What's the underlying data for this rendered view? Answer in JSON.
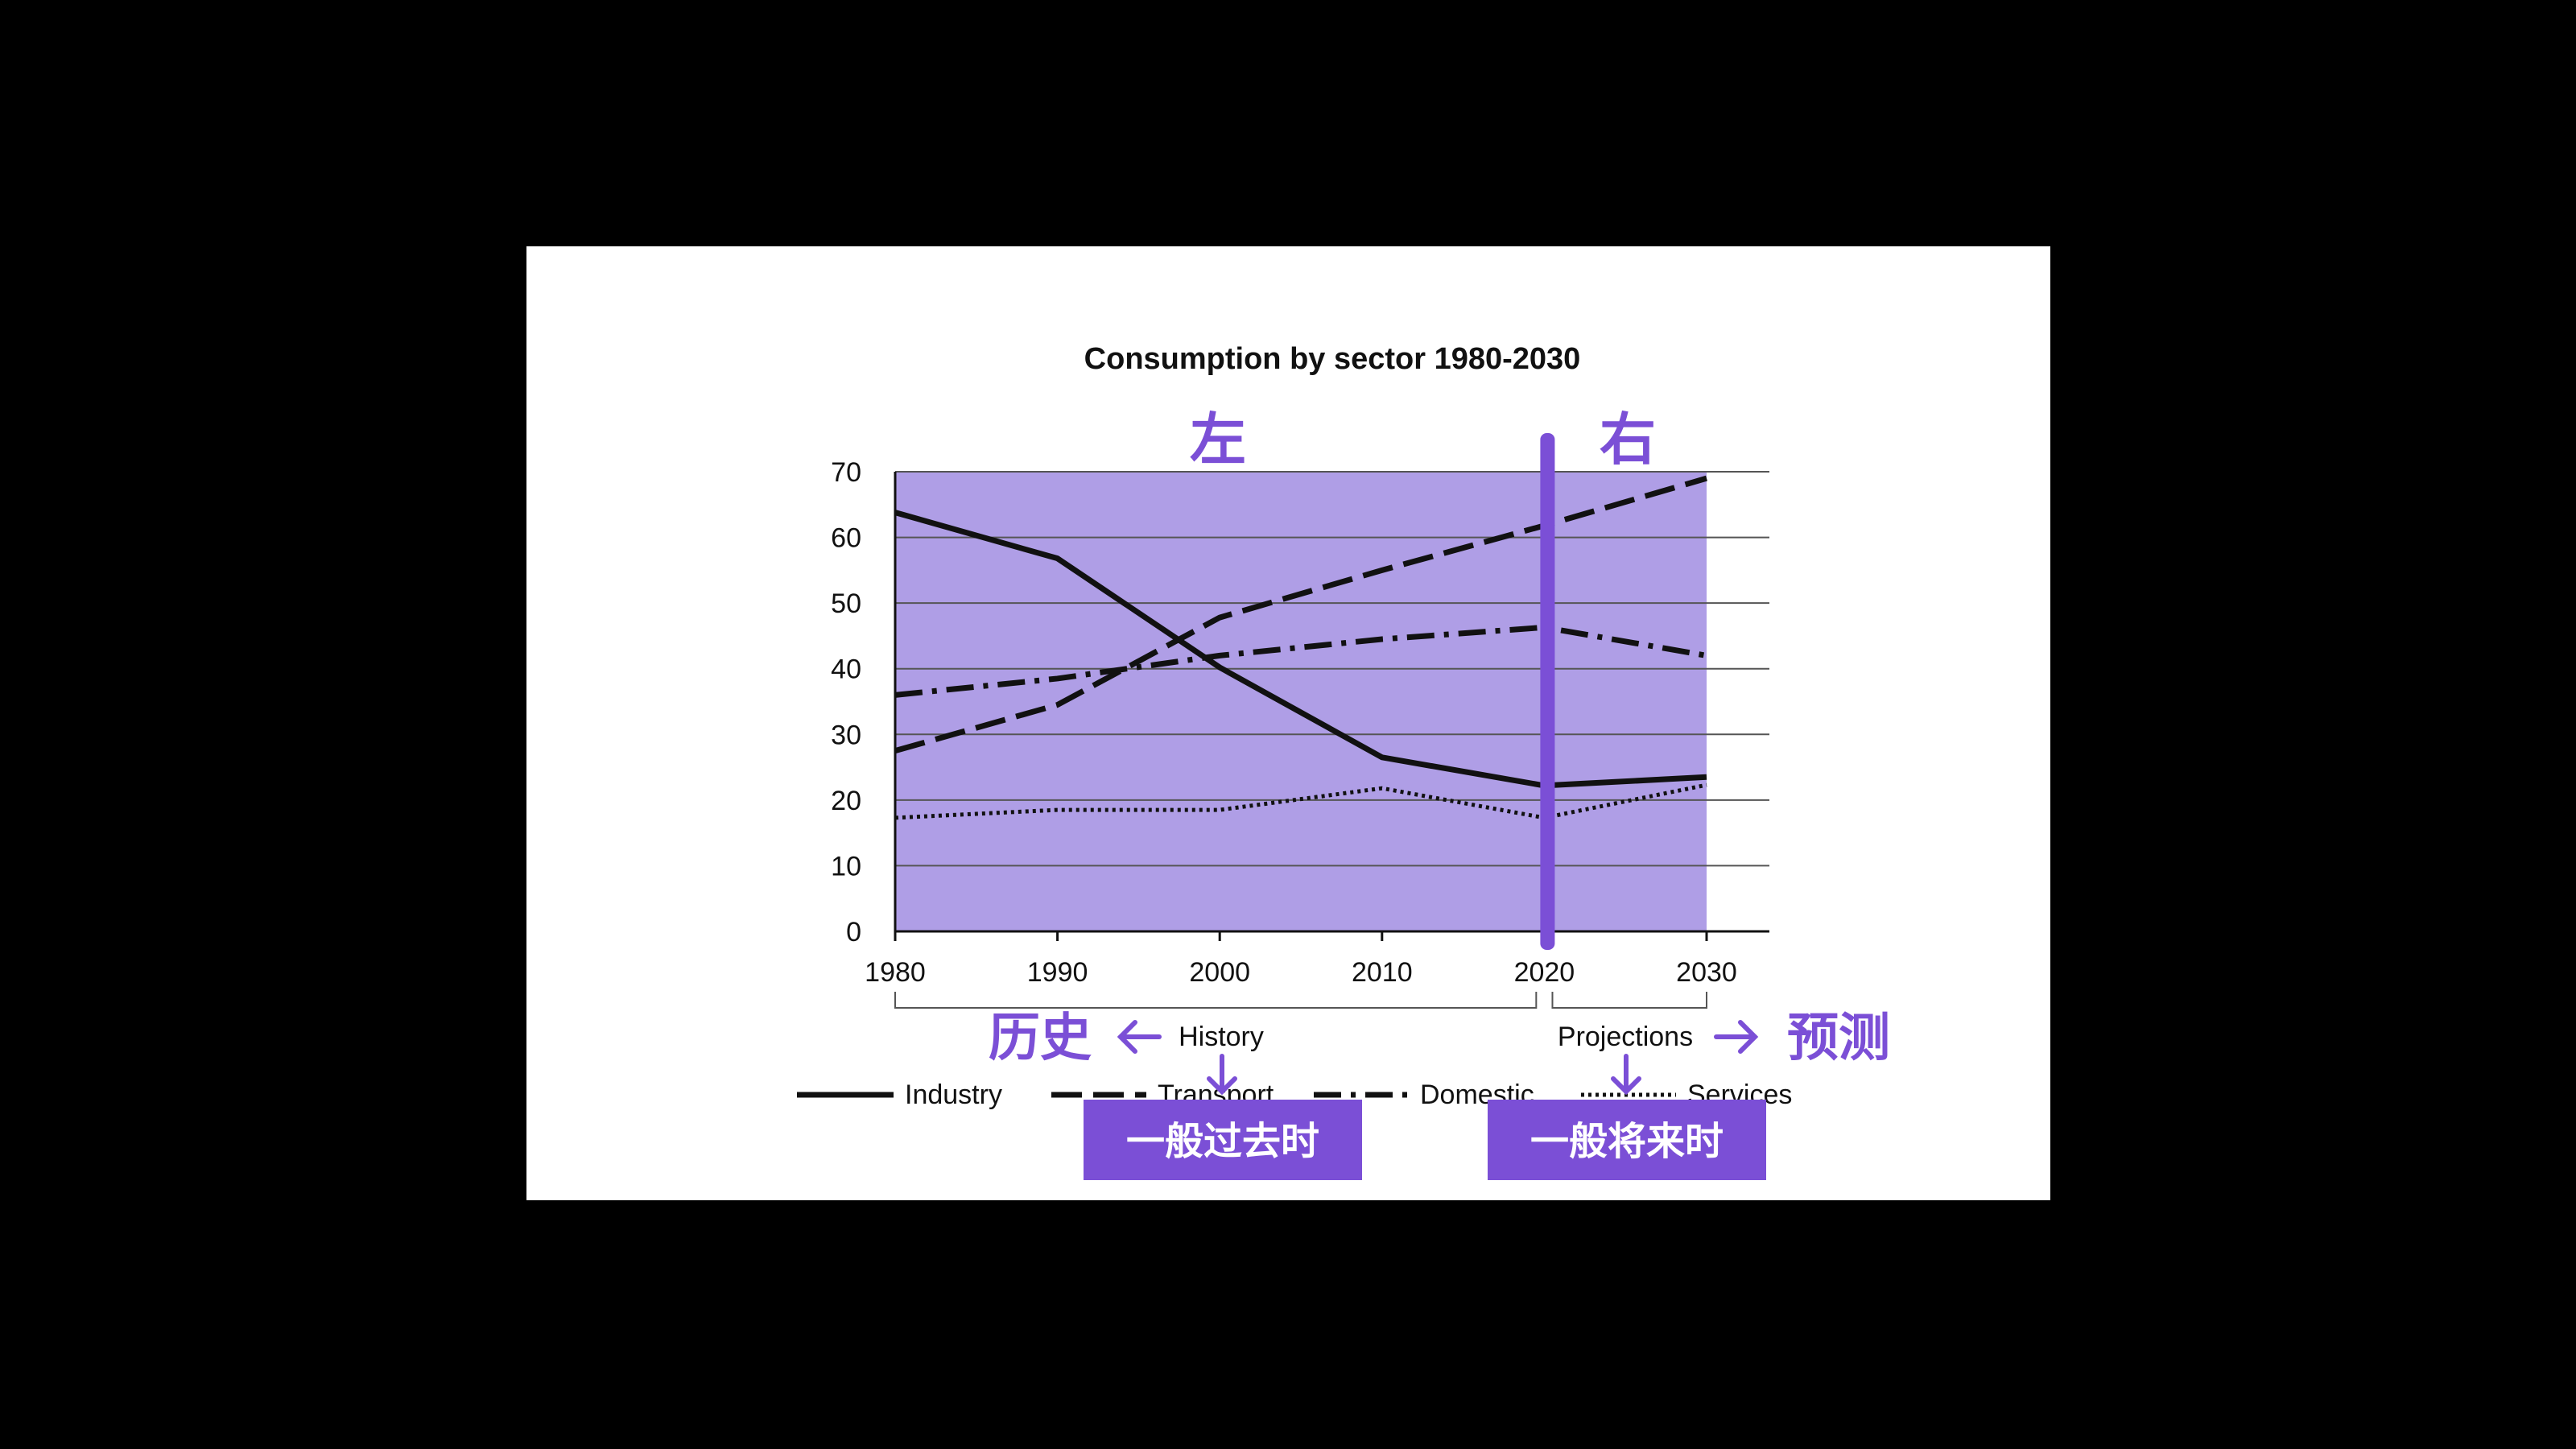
{
  "chart_data": {
    "type": "line",
    "title": "Consumption by sector 1980-2030",
    "x": [
      1980,
      1990,
      2000,
      2010,
      2020,
      2030
    ],
    "ylim": [
      0,
      70
    ],
    "yticks": [
      0,
      10,
      20,
      30,
      40,
      50,
      60,
      70
    ],
    "xlim": [
      1980,
      2030
    ],
    "grid": true,
    "legend_position": "bottom",
    "series": [
      {
        "name": "Industry",
        "style": "solid",
        "values": [
          63.8,
          56.8,
          40.2,
          26.5,
          22.2,
          23.5
        ]
      },
      {
        "name": "Transport",
        "style": "dashed",
        "values": [
          27.5,
          34.5,
          47.8,
          55.0,
          61.8,
          69.0
        ]
      },
      {
        "name": "Domestic",
        "style": "dashdot",
        "values": [
          36.0,
          38.5,
          42.0,
          44.5,
          46.3,
          42.0
        ]
      },
      {
        "name": "Services",
        "style": "dotted",
        "values": [
          17.3,
          18.5,
          18.5,
          21.8,
          17.3,
          22.3
        ]
      }
    ],
    "period_labels": {
      "history": "History",
      "projections": "Projections"
    },
    "divider_year": 2020
  },
  "annotations": {
    "left": "左",
    "right": "右",
    "history_cn": "历史",
    "projections_cn": "预测",
    "past_tense": "一般过去时",
    "future_tense": "一般将来时"
  },
  "colors": {
    "plot_fill": "#af9ee6",
    "divider": "#7b4fd6",
    "annotation": "#7b4fd6",
    "box_fill": "#7b4fd6"
  }
}
